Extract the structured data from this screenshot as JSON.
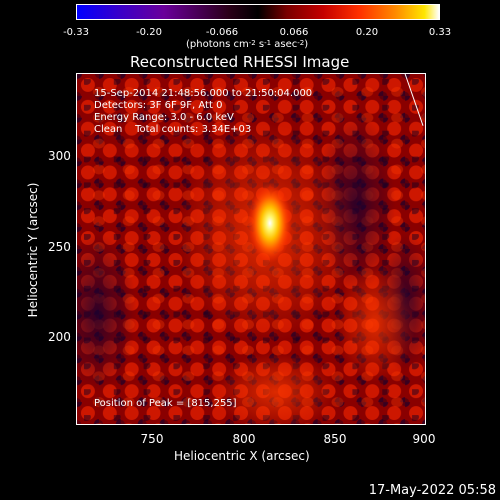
{
  "colorbar": {
    "ticks": [
      "-0.33",
      "-0.20",
      "-0.066",
      "0.066",
      "0.20",
      "0.33"
    ],
    "units_text": "(photons cm",
    "units_exp1": "-2",
    "units_mid": " s",
    "units_exp2": "-1",
    "units_end": " asec",
    "units_exp3": "-2",
    "units_close": ")"
  },
  "chart_data": {
    "type": "heatmap",
    "title": "Reconstructed RHESSI Image",
    "xlabel": "Heliocentric X (arcsec)",
    "ylabel": "Heliocentric Y (arcsec)",
    "x_ticks": [
      "750",
      "800",
      "850",
      "900"
    ],
    "y_ticks": [
      "300",
      "250",
      "200"
    ],
    "xlim": [
      710,
      900
    ],
    "ylim": [
      150,
      340
    ],
    "colorbar_range": [
      -0.33,
      0.33
    ],
    "peak": {
      "x": 815,
      "y": 255
    }
  },
  "annotations": {
    "time_range": "15-Sep-2014 21:48:56.000 to 21:50:04.000",
    "detectors": "Detectors: 3F 6F 9F, Att 0",
    "energy_range": "Energy Range: 3.0 - 6.0 keV",
    "clean_line": "Clean    Total counts: 3.34E+03",
    "peak_position": "Position of Peak = [815,255]"
  },
  "timestamp": "17-May-2022 05:58"
}
